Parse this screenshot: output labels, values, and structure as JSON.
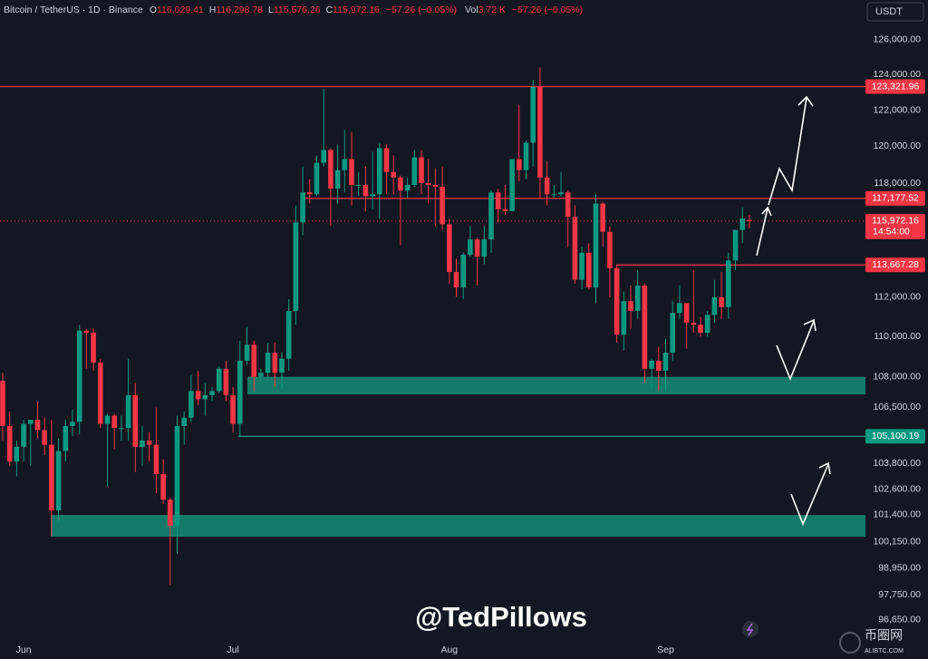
{
  "header": {
    "symbol": "Bitcoin / TetherUS · 1D · Binance",
    "fields": [
      {
        "key": "O",
        "value": "116,029.41"
      },
      {
        "key": "H",
        "value": "116,298.78"
      },
      {
        "key": "L",
        "value": "115,576.26"
      },
      {
        "key": "C",
        "value": "115,972.16"
      }
    ],
    "change": "−57.26 (−0.05%)",
    "volume_key": "Vol",
    "volume": "3.72 K",
    "volume_change": "−57.26 (−0.05%)",
    "currency": "USDT"
  },
  "watermark": "@TedPillows",
  "logo": {
    "name": "币圈网",
    "site": "ALIBTC.COM"
  },
  "chart_data": {
    "type": "candlestick",
    "categories": [
      null,
      null,
      null,
      "Jun",
      null,
      null,
      null,
      null,
      null,
      null,
      null,
      null,
      null,
      null,
      null,
      null,
      null,
      null,
      null,
      null,
      null,
      null,
      null,
      null,
      null,
      null,
      null,
      null,
      null,
      null,
      null,
      null,
      null,
      "Jul",
      null,
      null,
      null,
      null,
      null,
      null,
      null,
      null,
      null,
      null,
      null,
      null,
      null,
      null,
      null,
      null,
      null,
      null,
      null,
      null,
      null,
      null,
      null,
      null,
      null,
      null,
      null,
      null,
      null,
      null,
      "Aug",
      null,
      null,
      null,
      null,
      null,
      null,
      null,
      null,
      null,
      null,
      null,
      null,
      null,
      null,
      null,
      null,
      null,
      null,
      null,
      null,
      null,
      null,
      null,
      null,
      null,
      null,
      null,
      null,
      null,
      null,
      "Sep",
      null,
      null,
      null,
      null,
      null,
      null,
      null,
      null,
      null,
      null,
      null,
      null
    ],
    "open": [
      107800,
      105600,
      103900,
      104600,
      105700,
      105900,
      105400,
      104700,
      101600,
      104400,
      105600,
      105800,
      110300,
      110200,
      108700,
      105700,
      106100,
      105500,
      105500,
      107100,
      104600,
      104900,
      104700,
      103300,
      102100,
      100900,
      105600,
      106000,
      107300,
      106900,
      107100,
      107300,
      108400,
      107100,
      105700,
      108800,
      109600,
      108000,
      108200,
      109200,
      108200,
      108900,
      111300,
      115900,
      117500,
      117400,
      119100,
      119800,
      117700,
      118700,
      119300,
      117900,
      117900,
      117300,
      117400,
      119900,
      118600,
      118300,
      117600,
      117900,
      119400,
      118000,
      117900,
      117800,
      115800,
      113300,
      112500,
      114200,
      115000,
      114100,
      115000,
      117500,
      116600,
      116500,
      119300,
      118700,
      120200,
      123300,
      118300,
      117400,
      117400,
      117500,
      116200,
      112900,
      114300,
      112500,
      116900,
      115400,
      113500,
      110100,
      111800,
      111300,
      112600,
      108400,
      108800,
      108300,
      109200,
      111200,
      111700,
      110700,
      110600,
      110200,
      111100,
      112000,
      111500,
      113900,
      115500,
      116029.41
    ],
    "high": [
      108200,
      106300,
      104900,
      105900,
      105900,
      106800,
      106000,
      105900,
      105000,
      105900,
      106400,
      110600,
      110400,
      110400,
      108900,
      106200,
      106200,
      106100,
      108900,
      107700,
      105600,
      105300,
      106500,
      104000,
      102200,
      106100,
      106300,
      108100,
      108300,
      107700,
      107500,
      108500,
      108800,
      107500,
      109800,
      110500,
      109800,
      108400,
      109700,
      109700,
      109200,
      111900,
      116800,
      118900,
      118200,
      119500,
      123200,
      119900,
      120100,
      120900,
      120800,
      118600,
      118900,
      119700,
      120200,
      120100,
      119500,
      118400,
      118300,
      119800,
      119800,
      119300,
      118800,
      118900,
      116100,
      114000,
      114300,
      115700,
      115100,
      115700,
      117600,
      117700,
      117900,
      119300,
      122300,
      120300,
      123700,
      124400,
      119200,
      117900,
      118600,
      117600,
      116800,
      114600,
      114800,
      117400,
      117000,
      115700,
      113700,
      112300,
      112600,
      113400,
      112700,
      108900,
      109500,
      109900,
      111800,
      112600,
      111700,
      113400,
      111000,
      111300,
      112900,
      113300,
      114300,
      115500,
      116700,
      116298.78
    ],
    "low": [
      104900,
      103700,
      103200,
      103900,
      103700,
      105000,
      104200,
      100400,
      101100,
      103900,
      105100,
      105200,
      108400,
      108300,
      105500,
      102700,
      104500,
      104900,
      104900,
      103400,
      103700,
      103900,
      102400,
      101900,
      98200,
      99600,
      104700,
      105800,
      106600,
      106100,
      106800,
      107200,
      106800,
      105300,
      105100,
      108600,
      107300,
      107800,
      107800,
      107500,
      107400,
      108300,
      110600,
      115200,
      116900,
      117300,
      118900,
      115700,
      116900,
      117500,
      116800,
      117300,
      116500,
      116600,
      116100,
      117400,
      117400,
      114700,
      117200,
      117800,
      117400,
      116900,
      115700,
      115500,
      112700,
      112000,
      111900,
      114100,
      112600,
      113700,
      114300,
      115900,
      116300,
      116500,
      118100,
      118200,
      118900,
      117200,
      116800,
      117200,
      117300,
      114600,
      112700,
      112400,
      112400,
      111700,
      114600,
      112000,
      109700,
      109300,
      110400,
      110900,
      107700,
      107400,
      107300,
      107300,
      108800,
      110900,
      109400,
      110200,
      110000,
      110000,
      110700,
      110900,
      110900,
      113400,
      114800,
      115576.26
    ],
    "close": [
      105600,
      103900,
      104600,
      105700,
      105900,
      105400,
      104700,
      101600,
      104400,
      105600,
      105800,
      110300,
      110200,
      108700,
      105700,
      106100,
      105500,
      105500,
      107100,
      104600,
      104900,
      104700,
      103300,
      102100,
      100900,
      105600,
      106000,
      107300,
      106900,
      107100,
      107300,
      108400,
      107100,
      105700,
      108800,
      109600,
      108000,
      108200,
      109200,
      108200,
      108900,
      111300,
      115900,
      117500,
      117400,
      119100,
      119800,
      117700,
      118700,
      119300,
      117900,
      117900,
      117300,
      117400,
      119900,
      118600,
      118300,
      117600,
      117900,
      119400,
      118000,
      117900,
      117800,
      115800,
      113300,
      112500,
      114200,
      115000,
      114100,
      115000,
      117500,
      116600,
      116500,
      119300,
      118700,
      120200,
      123300,
      118300,
      117400,
      117400,
      117500,
      116200,
      112900,
      114300,
      112500,
      116900,
      115400,
      113500,
      110100,
      111800,
      111300,
      112600,
      108400,
      108800,
      108300,
      109200,
      111200,
      111700,
      110700,
      110600,
      110200,
      111100,
      112000,
      111500,
      113900,
      115500,
      116100,
      115972.16
    ],
    "up_color": "#089981",
    "down_color": "#f23645",
    "ylim": [
      95800,
      128300
    ],
    "log_scale": true,
    "grid": false,
    "yticks": [
      {
        "value": 126000,
        "label": "126,000.00"
      },
      {
        "value": 124000,
        "label": "124,000.00"
      },
      {
        "value": 122000,
        "label": "122,000.00"
      },
      {
        "value": 120000,
        "label": "120,000.00"
      },
      {
        "value": 118000,
        "label": "118,000.00"
      },
      {
        "value": 112000,
        "label": "112,000.00"
      },
      {
        "value": 110000,
        "label": "110,000.00"
      },
      {
        "value": 108000,
        "label": "108,000.00"
      },
      {
        "value": 106500,
        "label": "106,500.00"
      },
      {
        "value": 103800,
        "label": "103,800.00"
      },
      {
        "value": 102600,
        "label": "102,600.00"
      },
      {
        "value": 101400,
        "label": "101,400.00"
      },
      {
        "value": 100150,
        "label": "100,150.00"
      },
      {
        "value": 98950,
        "label": "98,950.00"
      },
      {
        "value": 97750,
        "label": "97,750.00"
      },
      {
        "value": 96650,
        "label": "96,650.00"
      }
    ],
    "levels": [
      {
        "value": 123321.96,
        "label": "123,321.96",
        "color": "#f23645"
      },
      {
        "value": 117177.52,
        "label": "117,177.52",
        "color": "#f23645"
      },
      {
        "value": 115972.16,
        "label": "115,972.16",
        "time": "14:54:00",
        "color": "#f23645",
        "line_style": "dotted"
      },
      {
        "value": 113667.28,
        "label": "113,667.28",
        "color": "#f23645"
      },
      {
        "value": 105100.19,
        "label": "105,100.19",
        "color": "#089981"
      }
    ],
    "zones": [
      {
        "low": 107130,
        "high": 108000,
        "color": "#137a69"
      },
      {
        "low": 100390,
        "high": 101390,
        "color": "#137a69"
      }
    ]
  }
}
